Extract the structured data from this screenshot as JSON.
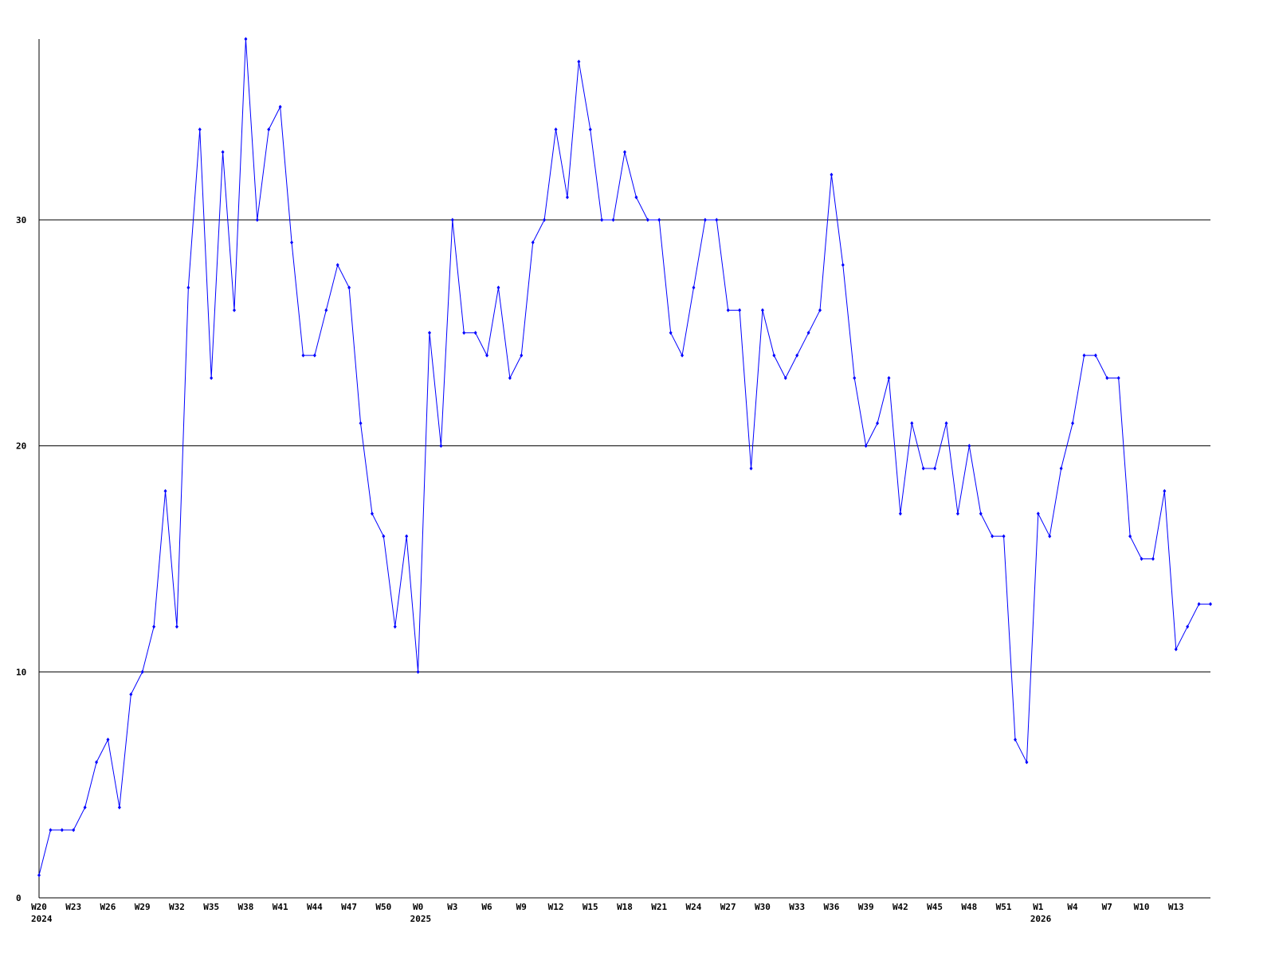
{
  "chart_data": {
    "type": "line",
    "categories": [
      "W20",
      null,
      null,
      "W23",
      null,
      null,
      "W26",
      null,
      null,
      "W29",
      null,
      null,
      "W32",
      null,
      null,
      "W35",
      null,
      null,
      "W38",
      null,
      null,
      "W41",
      null,
      null,
      "W44",
      null,
      null,
      "W47",
      null,
      null,
      "W50",
      null,
      null,
      "W0",
      null,
      null,
      "W3",
      null,
      null,
      "W6",
      null,
      null,
      "W9",
      null,
      null,
      "W12",
      null,
      null,
      "W15",
      null,
      null,
      "W18",
      null,
      null,
      "W21",
      null,
      null,
      "W24",
      null,
      null,
      "W27",
      null,
      null,
      "W30",
      null,
      null,
      "W33",
      null,
      null,
      "W36",
      null,
      null,
      "W39",
      null,
      null,
      "W42",
      null,
      null,
      "W45",
      null,
      null,
      "W48",
      null,
      null,
      "W51",
      null,
      null,
      "W1",
      null,
      null,
      "W4",
      null,
      null,
      "W7",
      null,
      null,
      "W10",
      null,
      null,
      "W13",
      null,
      null,
      null
    ],
    "year_labels": [
      "2024",
      null,
      null,
      null,
      null,
      null,
      null,
      null,
      null,
      null,
      null,
      null,
      null,
      null,
      null,
      null,
      null,
      null,
      null,
      null,
      null,
      null,
      null,
      null,
      null,
      null,
      null,
      null,
      null,
      null,
      null,
      null,
      null,
      "2025",
      null,
      null,
      null,
      null,
      null,
      null,
      null,
      null,
      null,
      null,
      null,
      null,
      null,
      null,
      null,
      null,
      null,
      null,
      null,
      null,
      null,
      null,
      null,
      null,
      null,
      null,
      null,
      null,
      null,
      null,
      null,
      null,
      null,
      null,
      null,
      null,
      null,
      null,
      null,
      null,
      null,
      null,
      null,
      null,
      null,
      null,
      null,
      null,
      null,
      null,
      null,
      null,
      null,
      "2026",
      null,
      null,
      null,
      null,
      null,
      null,
      null,
      null,
      null,
      null,
      null,
      null,
      null,
      null,
      null
    ],
    "series": [
      {
        "color": "#0000ff",
        "values": [
          1,
          3,
          3,
          3,
          4,
          6,
          7,
          4,
          9,
          10,
          12,
          18,
          12,
          27,
          34,
          23,
          33,
          26,
          38,
          30,
          34,
          35,
          29,
          24,
          24,
          26,
          28,
          27,
          21,
          17,
          16,
          12,
          16,
          10,
          25,
          20,
          30,
          25,
          25,
          24,
          27,
          23,
          24,
          29,
          30,
          34,
          31,
          37,
          34,
          30,
          30,
          33,
          31,
          30,
          30,
          25,
          24,
          27,
          30,
          30,
          26,
          26,
          19,
          26,
          24,
          23,
          24,
          25,
          26,
          32,
          28,
          23,
          20,
          21,
          23,
          17,
          21,
          19,
          19,
          21,
          17,
          20,
          17,
          16,
          16,
          7,
          6,
          17,
          16,
          19,
          21,
          24,
          24,
          23,
          23,
          16,
          15,
          15,
          18,
          11,
          12,
          13,
          13
        ]
      }
    ],
    "ylim": [
      0,
      38
    ],
    "yticks": [
      0,
      10,
      20,
      30
    ],
    "grid": true
  }
}
